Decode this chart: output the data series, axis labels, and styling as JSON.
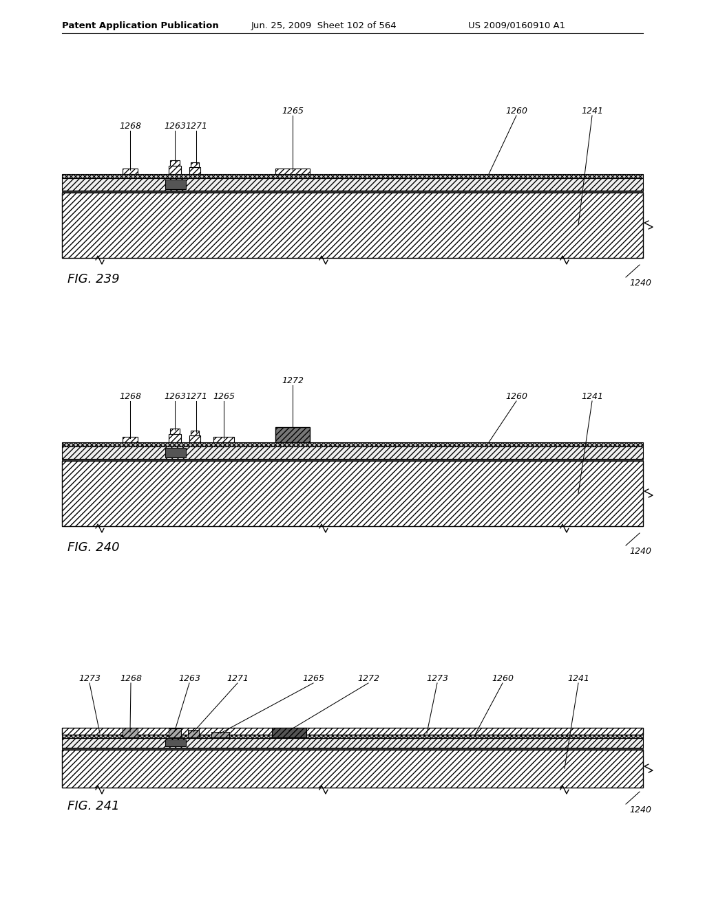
{
  "header_left": "Patent Application Publication",
  "header_mid": "Jun. 25, 2009  Sheet 102 of 564",
  "header_right": "US 2009/0160910 A1",
  "fig239_label": "FIG. 239",
  "fig240_label": "FIG. 240",
  "fig241_label": "FIG. 241",
  "label_1240": "1240",
  "bg_color": "#ffffff",
  "line_color": "#000000"
}
